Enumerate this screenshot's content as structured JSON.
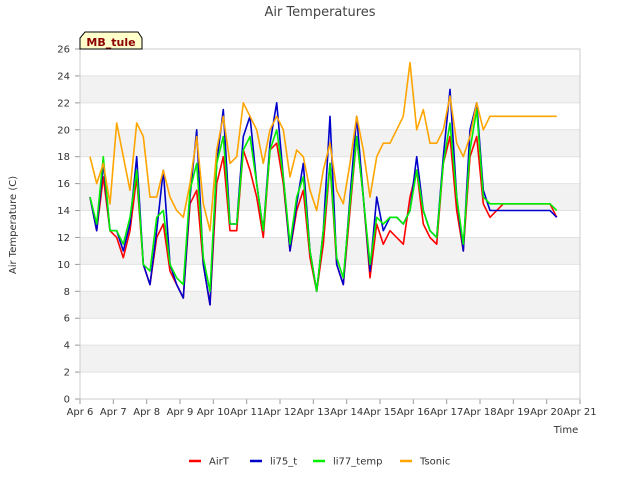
{
  "chart_data": {
    "type": "line",
    "title": "Air Temperatures",
    "xlabel": "Time",
    "ylabel": "Air Temperature (C)",
    "ylim": [
      0,
      26
    ],
    "xlim": [
      0,
      15
    ],
    "y_ticks": [
      0,
      2,
      4,
      6,
      8,
      10,
      12,
      14,
      16,
      18,
      20,
      22,
      24,
      26
    ],
    "x_tick_labels": [
      "Apr 6",
      "Apr 7",
      "Apr 8",
      "Apr 9",
      "Apr 10",
      "Apr 11",
      "Apr 12",
      "Apr 13",
      "Apr 14",
      "Apr 15",
      "Apr 16",
      "Apr 17",
      "Apr 18",
      "Apr 19",
      "Apr 20",
      "Apr 21"
    ],
    "x_unit": "days since Apr 6",
    "station_label": "MB_tule",
    "grid": "horizontal bands",
    "legend_position": "bottom",
    "series": [
      {
        "name": "AirT",
        "color": "#ff0000",
        "x": [
          0.3,
          0.5,
          0.7,
          0.9,
          1.1,
          1.3,
          1.5,
          1.7,
          1.9,
          2.1,
          2.3,
          2.5,
          2.7,
          2.9,
          3.1,
          3.3,
          3.5,
          3.7,
          3.9,
          4.1,
          4.3,
          4.5,
          4.7,
          4.9,
          5.1,
          5.3,
          5.5,
          5.7,
          5.9,
          6.1,
          6.3,
          6.5,
          6.7,
          6.9,
          7.1,
          7.3,
          7.5,
          7.7,
          7.9,
          8.1,
          8.3,
          8.5,
          8.7,
          8.9,
          9.1,
          9.3,
          9.5,
          9.7,
          9.9,
          10.1,
          10.3,
          10.5,
          10.7,
          10.9,
          11.1,
          11.3,
          11.5,
          11.7,
          11.9,
          12.1,
          12.3,
          12.5,
          12.7,
          12.9,
          13.1,
          13.3,
          13.5,
          13.7,
          13.9,
          14.1,
          14.3
        ],
        "y": [
          15.0,
          12.5,
          16.5,
          12.5,
          12.0,
          10.5,
          12.5,
          16.5,
          10.0,
          8.5,
          12.0,
          13.0,
          9.5,
          8.5,
          7.5,
          14.5,
          15.5,
          10.0,
          7.0,
          16.0,
          18.0,
          12.5,
          12.5,
          18.5,
          17.0,
          15.0,
          12.0,
          18.5,
          19.0,
          16.0,
          11.0,
          14.0,
          15.5,
          10.5,
          8.0,
          11.5,
          17.5,
          10.0,
          8.5,
          14.0,
          19.5,
          15.0,
          9.0,
          13.0,
          11.5,
          12.5,
          12.0,
          11.5,
          15.0,
          17.0,
          13.0,
          12.0,
          11.5,
          17.5,
          19.5,
          14.0,
          11.0,
          18.0,
          19.5,
          14.5,
          13.5,
          14.0,
          14.5,
          14.5,
          14.5,
          14.5,
          14.5,
          14.5,
          14.5,
          14.5,
          13.5
        ]
      },
      {
        "name": "li75_t",
        "color": "#0000cc",
        "x": [
          0.3,
          0.5,
          0.7,
          0.9,
          1.1,
          1.3,
          1.5,
          1.7,
          1.9,
          2.1,
          2.3,
          2.5,
          2.7,
          2.9,
          3.1,
          3.3,
          3.5,
          3.7,
          3.9,
          4.1,
          4.3,
          4.5,
          4.7,
          4.9,
          5.1,
          5.3,
          5.5,
          5.7,
          5.9,
          6.1,
          6.3,
          6.5,
          6.7,
          6.9,
          7.1,
          7.3,
          7.5,
          7.7,
          7.9,
          8.1,
          8.3,
          8.5,
          8.7,
          8.9,
          9.1,
          9.3,
          9.5,
          9.7,
          9.9,
          10.1,
          10.3,
          10.5,
          10.7,
          10.9,
          11.1,
          11.3,
          11.5,
          11.7,
          11.9,
          12.1,
          12.3,
          12.5,
          12.7,
          12.9,
          13.1,
          13.3,
          13.5,
          13.7,
          13.9,
          14.1,
          14.3
        ],
        "y": [
          15.0,
          12.5,
          17.5,
          12.5,
          12.5,
          11.0,
          13.0,
          18.0,
          10.0,
          8.5,
          12.5,
          17.0,
          10.0,
          8.5,
          7.5,
          15.0,
          20.0,
          10.0,
          7.0,
          17.5,
          21.5,
          13.0,
          13.0,
          19.5,
          21.0,
          16.0,
          12.5,
          19.0,
          22.0,
          16.5,
          11.0,
          14.5,
          17.5,
          11.0,
          8.0,
          12.5,
          21.0,
          10.0,
          8.5,
          15.0,
          21.0,
          15.0,
          9.5,
          15.0,
          12.5,
          13.5,
          13.5,
          13.0,
          14.0,
          18.0,
          14.0,
          12.5,
          12.0,
          18.0,
          23.0,
          15.0,
          11.0,
          20.0,
          22.0,
          15.5,
          14.0,
          14.0,
          14.0,
          14.0,
          14.0,
          14.0,
          14.0,
          14.0,
          14.0,
          14.0,
          13.5
        ]
      },
      {
        "name": "li77_temp",
        "color": "#00ee00",
        "x": [
          0.3,
          0.5,
          0.7,
          0.9,
          1.1,
          1.3,
          1.5,
          1.7,
          1.9,
          2.1,
          2.3,
          2.5,
          2.7,
          2.9,
          3.1,
          3.3,
          3.5,
          3.7,
          3.9,
          4.1,
          4.3,
          4.5,
          4.7,
          4.9,
          5.1,
          5.3,
          5.5,
          5.7,
          5.9,
          6.1,
          6.3,
          6.5,
          6.7,
          6.9,
          7.1,
          7.3,
          7.5,
          7.7,
          7.9,
          8.1,
          8.3,
          8.5,
          8.7,
          8.9,
          9.1,
          9.3,
          9.5,
          9.7,
          9.9,
          10.1,
          10.3,
          10.5,
          10.7,
          10.9,
          11.1,
          11.3,
          11.5,
          11.7,
          11.9,
          12.1,
          12.3,
          12.5,
          12.7,
          12.9,
          13.1,
          13.3,
          13.5,
          13.7,
          13.9,
          14.1,
          14.3
        ],
        "y": [
          15.0,
          13.0,
          18.0,
          12.5,
          12.5,
          11.5,
          13.5,
          17.0,
          10.0,
          9.5,
          13.5,
          14.0,
          10.0,
          9.0,
          8.5,
          15.5,
          17.5,
          10.5,
          8.0,
          17.5,
          19.5,
          13.0,
          13.0,
          18.5,
          19.5,
          16.0,
          12.5,
          18.5,
          20.0,
          16.5,
          11.5,
          15.0,
          16.5,
          11.0,
          8.0,
          12.5,
          17.5,
          10.5,
          9.0,
          14.5,
          19.5,
          15.0,
          10.0,
          13.5,
          13.0,
          13.5,
          13.5,
          13.0,
          14.0,
          17.0,
          14.0,
          12.5,
          12.0,
          17.5,
          20.5,
          15.0,
          11.5,
          18.5,
          21.5,
          15.0,
          14.5,
          14.5,
          14.5,
          14.5,
          14.5,
          14.5,
          14.5,
          14.5,
          14.5,
          14.5,
          14.0
        ]
      },
      {
        "name": "Tsonic",
        "color": "#ffa500",
        "x": [
          0.3,
          0.5,
          0.7,
          0.9,
          1.1,
          1.3,
          1.5,
          1.7,
          1.9,
          2.1,
          2.3,
          2.5,
          2.7,
          2.9,
          3.1,
          3.3,
          3.5,
          3.7,
          3.9,
          4.1,
          4.3,
          4.5,
          4.7,
          4.9,
          5.1,
          5.3,
          5.5,
          5.7,
          5.9,
          6.1,
          6.3,
          6.5,
          6.7,
          6.9,
          7.1,
          7.3,
          7.5,
          7.7,
          7.9,
          8.1,
          8.3,
          8.5,
          8.7,
          8.9,
          9.1,
          9.3,
          9.5,
          9.7,
          9.9,
          10.1,
          10.3,
          10.5,
          10.7,
          10.9,
          11.1,
          11.3,
          11.5,
          11.7,
          11.9,
          12.1,
          12.3,
          12.5,
          12.7,
          12.9,
          13.1,
          13.3,
          13.5,
          13.7,
          13.9,
          14.1,
          14.3
        ],
        "y": [
          18.0,
          16.0,
          17.5,
          14.5,
          20.5,
          18.0,
          15.5,
          20.5,
          19.5,
          15.0,
          15.0,
          17.0,
          15.0,
          14.0,
          13.5,
          16.0,
          19.5,
          14.5,
          12.5,
          18.5,
          21.0,
          17.5,
          18.0,
          22.0,
          21.0,
          20.0,
          17.5,
          20.0,
          21.0,
          20.0,
          16.5,
          18.5,
          18.0,
          15.5,
          14.0,
          17.0,
          19.0,
          15.5,
          14.5,
          17.5,
          21.0,
          18.5,
          15.0,
          18.0,
          19.0,
          19.0,
          20.0,
          21.0,
          25.0,
          20.0,
          21.5,
          19.0,
          19.0,
          20.0,
          22.5,
          19.0,
          18.0,
          19.5,
          22.0,
          20.0,
          21.0,
          21.0,
          21.0,
          21.0,
          21.0,
          21.0,
          21.0,
          21.0,
          21.0,
          21.0,
          21.0
        ]
      }
    ]
  }
}
